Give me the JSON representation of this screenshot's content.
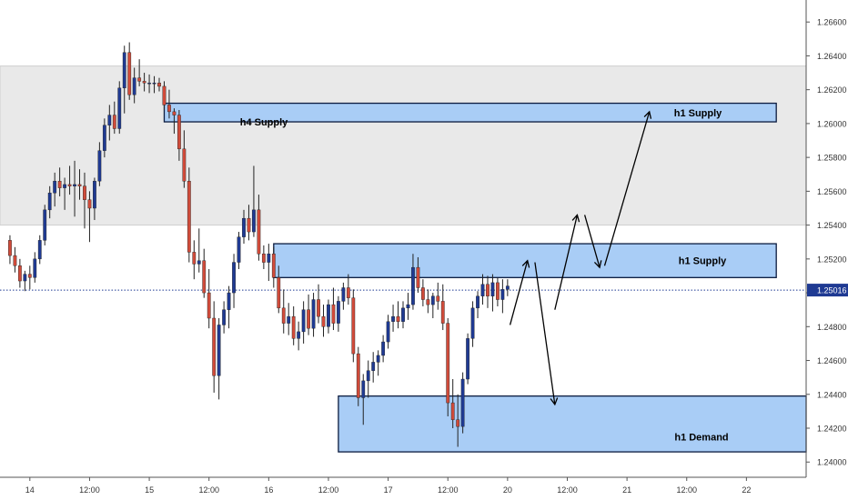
{
  "chart_data": {
    "type": "candlestick",
    "title": "",
    "xlabel": "",
    "ylabel": "",
    "ylim": [
      1.2391,
      1.2673
    ],
    "xlim": [
      -2,
      160
    ],
    "y_ticks": [
      1.266,
      1.264,
      1.262,
      1.26,
      1.258,
      1.256,
      1.254,
      1.252,
      1.25,
      1.248,
      1.246,
      1.244,
      1.242,
      1.24
    ],
    "y_tick_labels": [
      "1.26600",
      "1.26400",
      "1.26200",
      "1.26000",
      "1.25800",
      "1.25600",
      "1.25400",
      "1.25200",
      "1.25000",
      "1.24800",
      "1.24600",
      "1.24400",
      "1.24200",
      "1.24000"
    ],
    "x_ticks": [
      {
        "bar": 4,
        "label": "14"
      },
      {
        "bar": 16,
        "label": "12:00"
      },
      {
        "bar": 28,
        "label": "15"
      },
      {
        "bar": 40,
        "label": "12:00"
      },
      {
        "bar": 52,
        "label": "16"
      },
      {
        "bar": 64,
        "label": "12:00"
      },
      {
        "bar": 76,
        "label": "17"
      },
      {
        "bar": 88,
        "label": "12:00"
      },
      {
        "bar": 100,
        "label": "20"
      },
      {
        "bar": 112,
        "label": "12:00"
      },
      {
        "bar": 124,
        "label": "21"
      },
      {
        "bar": 136,
        "label": "12:00"
      },
      {
        "bar": 148,
        "label": "22"
      },
      {
        "bar": 160,
        "label": "12:00"
      }
    ],
    "current_price": 1.25016,
    "current_price_label": "1.25016",
    "colors": {
      "up": "#1f3a93",
      "down": "#d14b3a",
      "zone": "#a9cdf6",
      "zone_border": "#0b1b3f",
      "h4_zone": "#e9e9e9",
      "price_line": "#1f3a93"
    },
    "candles": [
      [
        1.2531,
        1.2534,
        1.2517,
        1.2522
      ],
      [
        1.2522,
        1.2527,
        1.2512,
        1.2516
      ],
      [
        1.2516,
        1.252,
        1.2503,
        1.2507
      ],
      [
        1.2507,
        1.2513,
        1.2501,
        1.2511
      ],
      [
        1.2511,
        1.2516,
        1.2502,
        1.2509
      ],
      [
        1.2509,
        1.2524,
        1.2506,
        1.252
      ],
      [
        1.252,
        1.2534,
        1.2517,
        1.2531
      ],
      [
        1.2531,
        1.2552,
        1.2528,
        1.2549
      ],
      [
        1.2549,
        1.2563,
        1.2544,
        1.2559
      ],
      [
        1.2559,
        1.2571,
        1.2551,
        1.2566
      ],
      [
        1.2566,
        1.2574,
        1.2557,
        1.2562
      ],
      [
        1.2562,
        1.2568,
        1.2549,
        1.2564
      ],
      [
        1.2564,
        1.2575,
        1.2558,
        1.2563
      ],
      [
        1.2563,
        1.2578,
        1.2545,
        1.2564
      ],
      [
        1.2564,
        1.2573,
        1.2555,
        1.2563
      ],
      [
        1.2563,
        1.2571,
        1.2538,
        1.2555
      ],
      [
        1.2555,
        1.256,
        1.253,
        1.255
      ],
      [
        1.255,
        1.2568,
        1.2543,
        1.2566
      ],
      [
        1.2566,
        1.2589,
        1.2563,
        1.2584
      ],
      [
        1.2584,
        1.2603,
        1.258,
        1.2599
      ],
      [
        1.2599,
        1.2611,
        1.259,
        1.2605
      ],
      [
        1.2605,
        1.2613,
        1.2594,
        1.2597
      ],
      [
        1.2597,
        1.2625,
        1.2594,
        1.2621
      ],
      [
        1.2621,
        1.2646,
        1.2606,
        1.2642
      ],
      [
        1.2642,
        1.2648,
        1.2614,
        1.2617
      ],
      [
        1.2617,
        1.2633,
        1.2612,
        1.2627
      ],
      [
        1.2627,
        1.2638,
        1.2622,
        1.2625
      ],
      [
        1.2625,
        1.263,
        1.2619,
        1.2624
      ],
      [
        1.2624,
        1.2629,
        1.2618,
        1.2624
      ],
      [
        1.2624,
        1.2628,
        1.2618,
        1.2624
      ],
      [
        1.2624,
        1.2627,
        1.2619,
        1.2622
      ],
      [
        1.2622,
        1.2625,
        1.2608,
        1.2611
      ],
      [
        1.2611,
        1.262,
        1.2603,
        1.2607
      ],
      [
        1.2607,
        1.2609,
        1.2594,
        1.2605
      ],
      [
        1.2605,
        1.2608,
        1.2578,
        1.2585
      ],
      [
        1.2585,
        1.2596,
        1.2562,
        1.2566
      ],
      [
        1.2566,
        1.2574,
        1.2518,
        1.2524
      ],
      [
        1.2524,
        1.2531,
        1.2508,
        1.2517
      ],
      [
        1.2517,
        1.2538,
        1.2512,
        1.2519
      ],
      [
        1.2519,
        1.2526,
        1.2497,
        1.25
      ],
      [
        1.25,
        1.2514,
        1.2479,
        1.2485
      ],
      [
        1.2485,
        1.2495,
        1.2441,
        1.2451
      ],
      [
        1.2451,
        1.2485,
        1.2437,
        1.2481
      ],
      [
        1.2481,
        1.2495,
        1.2476,
        1.249
      ],
      [
        1.249,
        1.2504,
        1.2479,
        1.25
      ],
      [
        1.25,
        1.2523,
        1.2491,
        1.2518
      ],
      [
        1.2518,
        1.2536,
        1.2514,
        1.2533
      ],
      [
        1.2533,
        1.2549,
        1.2529,
        1.2544
      ],
      [
        1.2544,
        1.2552,
        1.2531,
        1.2536
      ],
      [
        1.2536,
        1.2575,
        1.2533,
        1.2549
      ],
      [
        1.2549,
        1.2558,
        1.2519,
        1.2523
      ],
      [
        1.2523,
        1.2528,
        1.2514,
        1.2518
      ],
      [
        1.2518,
        1.2529,
        1.2507,
        1.2523
      ],
      [
        1.2523,
        1.2527,
        1.2503,
        1.2509
      ],
      [
        1.2509,
        1.2516,
        1.2488,
        1.2491
      ],
      [
        1.2491,
        1.2502,
        1.2476,
        1.2482
      ],
      [
        1.2482,
        1.2494,
        1.2475,
        1.2486
      ],
      [
        1.2486,
        1.2492,
        1.2469,
        1.2473
      ],
      [
        1.2473,
        1.2483,
        1.2466,
        1.2477
      ],
      [
        1.2477,
        1.2495,
        1.247,
        1.249
      ],
      [
        1.249,
        1.2499,
        1.2475,
        1.2479
      ],
      [
        1.2479,
        1.25,
        1.2474,
        1.2496
      ],
      [
        1.2496,
        1.2505,
        1.2482,
        1.2486
      ],
      [
        1.2486,
        1.2493,
        1.2474,
        1.248
      ],
      [
        1.248,
        1.2496,
        1.2476,
        1.2493
      ],
      [
        1.2493,
        1.2503,
        1.2478,
        1.2482
      ],
      [
        1.2482,
        1.2498,
        1.2477,
        1.2495
      ],
      [
        1.2495,
        1.2506,
        1.249,
        1.2503
      ],
      [
        1.2503,
        1.2511,
        1.2493,
        1.2497
      ],
      [
        1.2497,
        1.2502,
        1.2459,
        1.2464
      ],
      [
        1.2464,
        1.2468,
        1.2433,
        1.2438
      ],
      [
        1.2438,
        1.2452,
        1.2422,
        1.2448
      ],
      [
        1.2448,
        1.246,
        1.2438,
        1.2454
      ],
      [
        1.2454,
        1.2465,
        1.2447,
        1.2459
      ],
      [
        1.2459,
        1.2466,
        1.2451,
        1.2463
      ],
      [
        1.2463,
        1.2475,
        1.2459,
        1.2471
      ],
      [
        1.2471,
        1.2487,
        1.2467,
        1.2483
      ],
      [
        1.2483,
        1.2493,
        1.2477,
        1.2486
      ],
      [
        1.2486,
        1.2495,
        1.2479,
        1.2483
      ],
      [
        1.2483,
        1.2495,
        1.2479,
        1.2491
      ],
      [
        1.2491,
        1.25,
        1.2484,
        1.2493
      ],
      [
        1.2493,
        1.2523,
        1.249,
        1.2515
      ],
      [
        1.2515,
        1.2521,
        1.25,
        1.2503
      ],
      [
        1.2503,
        1.2508,
        1.2492,
        1.2496
      ],
      [
        1.2496,
        1.2502,
        1.2488,
        1.2493
      ],
      [
        1.2493,
        1.25,
        1.2485,
        1.2498
      ],
      [
        1.2498,
        1.2506,
        1.249,
        1.2495
      ],
      [
        1.2495,
        1.2505,
        1.2478,
        1.2482
      ],
      [
        1.2482,
        1.2485,
        1.2427,
        1.2435
      ],
      [
        1.2435,
        1.2449,
        1.242,
        1.2425
      ],
      [
        1.2425,
        1.244,
        1.2409,
        1.2421
      ],
      [
        1.2421,
        1.2453,
        1.2417,
        1.2449
      ],
      [
        1.2449,
        1.2476,
        1.2446,
        1.2473
      ],
      [
        1.2473,
        1.2495,
        1.2468,
        1.2491
      ],
      [
        1.2491,
        1.2501,
        1.2485,
        1.2498
      ],
      [
        1.2498,
        1.2511,
        1.2493,
        1.2505
      ],
      [
        1.2505,
        1.251,
        1.2491,
        1.2498
      ],
      [
        1.2498,
        1.2511,
        1.2489,
        1.2506
      ],
      [
        1.2506,
        1.2509,
        1.2492,
        1.2496
      ],
      [
        1.2496,
        1.2508,
        1.2488,
        1.2502
      ],
      [
        1.2502,
        1.2508,
        1.2498,
        1.2504
      ]
    ],
    "zones": [
      {
        "label": "h4 Supply",
        "top": 1.2634,
        "bottom": 1.254,
        "x_start": -2,
        "x_end": 160
      },
      {
        "label": "h1 Supply",
        "top": 1.2612,
        "bottom": 1.2601,
        "x_start": 31,
        "x_end": 154
      },
      {
        "label": "h1 Supply",
        "top": 1.2529,
        "bottom": 1.2509,
        "x_start": 53,
        "x_end": 154
      },
      {
        "label": "h1 Demand",
        "top": 1.2439,
        "bottom": 1.2406,
        "x_start": 66,
        "x_end": 160
      }
    ],
    "projection_arrows": [
      {
        "from": [
          100.5,
          1.2481
        ],
        "to": [
          104.0,
          1.2519
        ]
      },
      {
        "from": [
          105.5,
          1.2518
        ],
        "to": [
          109.5,
          1.2434
        ]
      },
      {
        "from": [
          109.5,
          1.249
        ],
        "to": [
          114.0,
          1.2546
        ]
      },
      {
        "from": [
          115.5,
          1.2546
        ],
        "to": [
          118.5,
          1.2515
        ]
      },
      {
        "from": [
          119.5,
          1.2516
        ],
        "to": [
          128.5,
          1.2607
        ]
      }
    ]
  }
}
